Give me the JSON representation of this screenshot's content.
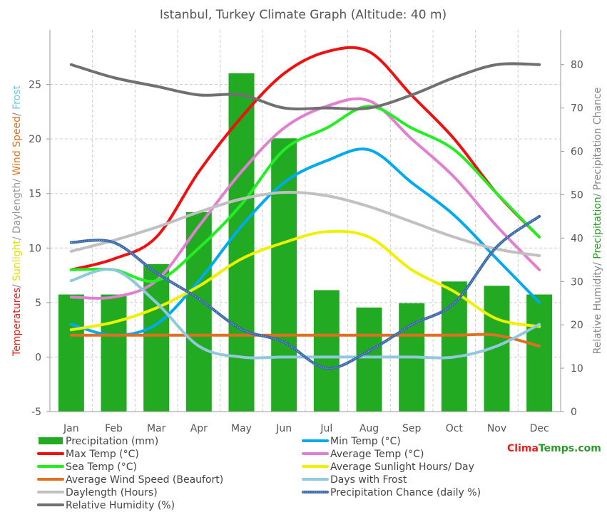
{
  "chart_data": {
    "type": "bar",
    "title": "Istanbul, Turkey Climate Graph (Altitude: 40 m)",
    "categories": [
      "Jan",
      "Feb",
      "Mar",
      "Apr",
      "May",
      "Jun",
      "Jul",
      "Aug",
      "Sep",
      "Oct",
      "Nov",
      "Dec"
    ],
    "left_axis": {
      "range": [
        -5,
        30
      ],
      "ticks": [
        -5,
        0,
        5,
        10,
        15,
        20,
        25
      ],
      "label_parts": [
        {
          "text": "Temperatures",
          "color": "#e8201e"
        },
        {
          "text": "/ ",
          "color": "#888888"
        },
        {
          "text": "Sunlight",
          "color": "#e0e000"
        },
        {
          "text": "/ Daylength/ ",
          "color": "#999999"
        },
        {
          "text": "Wind Speed",
          "color": "#e07020"
        },
        {
          "text": "/ ",
          "color": "#888888"
        },
        {
          "text": "Frost",
          "color": "#6ec8e0"
        }
      ]
    },
    "right_axis": {
      "range": [
        0,
        88
      ],
      "ticks": [
        0,
        10,
        20,
        30,
        40,
        50,
        60,
        70,
        80
      ],
      "label_parts": [
        {
          "text": "Relative Humidity",
          "color": "#888888"
        },
        {
          "text": "/ ",
          "color": "#888888"
        },
        {
          "text": "Precipitation",
          "color": "#2a9a2a"
        },
        {
          "text": "/ ",
          "color": "#888888"
        },
        {
          "text": "Precipitation Chance",
          "color": "#888888"
        }
      ]
    },
    "bars": {
      "name": "Precipitation (mm)",
      "color": "#22aa22",
      "values": [
        27,
        27,
        34,
        46,
        78,
        63,
        28,
        24,
        25,
        30,
        29,
        27
      ]
    },
    "series": [
      {
        "name": "Min Temp (°C)",
        "color": "#00aaee",
        "axis": "left",
        "style": "solid",
        "values": [
          3,
          2,
          3,
          7,
          12,
          16,
          18,
          19,
          16,
          13,
          9,
          5
        ]
      },
      {
        "name": "Max Temp (°C)",
        "color": "#ee1111",
        "axis": "left",
        "style": "solid",
        "values": [
          8,
          9,
          11,
          17,
          22,
          26,
          28,
          28,
          24,
          20,
          15,
          11
        ]
      },
      {
        "name": "Average Temp (°C)",
        "color": "#e080d0",
        "axis": "left",
        "style": "solid",
        "values": [
          5.5,
          5.5,
          7,
          12,
          17,
          21,
          23,
          23.5,
          20,
          16.5,
          12,
          8
        ]
      },
      {
        "name": "Sea Temp (°C)",
        "color": "#22ee22",
        "axis": "left",
        "style": "solid",
        "values": [
          8,
          8,
          7,
          10,
          14,
          19,
          21,
          23,
          21,
          19,
          15,
          11
        ]
      },
      {
        "name": "Average Sunlight Hours/ Day",
        "color": "#f0f000",
        "axis": "left",
        "style": "solid",
        "values": [
          2.5,
          3.2,
          4.5,
          6.5,
          9,
          10.5,
          11.5,
          11,
          8,
          6,
          3.5,
          2.8
        ]
      },
      {
        "name": "Average Wind Speed (Beaufort)",
        "color": "#e07020",
        "axis": "left",
        "style": "solid",
        "values": [
          2,
          2,
          2,
          2,
          2,
          2,
          2,
          2,
          2,
          2,
          2,
          1
        ]
      },
      {
        "name": "Days with Frost",
        "color": "#90c8dc",
        "axis": "left",
        "style": "solid",
        "values": [
          7,
          8,
          5,
          1,
          0,
          0,
          0,
          0,
          0,
          0,
          1,
          3
        ]
      },
      {
        "name": "Daylength (Hours)",
        "color": "#c0c0c0",
        "axis": "left",
        "style": "solid",
        "values": [
          9.7,
          10.7,
          11.9,
          13.3,
          14.5,
          15.1,
          14.8,
          13.8,
          12.4,
          11.0,
          9.9,
          9.3
        ]
      },
      {
        "name": "Precipitation Chance (daily %)",
        "color": "#3a6aa8",
        "axis": "right",
        "style": "dotted",
        "values": [
          39,
          39,
          32,
          26,
          19,
          16,
          10,
          14,
          20,
          25,
          38,
          45
        ]
      },
      {
        "name": "Relative Humidity (%)",
        "color": "#707070",
        "axis": "right",
        "style": "solid",
        "values": [
          80,
          77,
          75,
          73,
          73,
          70,
          70,
          70,
          73,
          77,
          80,
          80
        ]
      }
    ]
  },
  "legend_order": [
    "Precipitation (mm)",
    "Min Temp (°C)",
    "Max Temp (°C)",
    "Average Temp (°C)",
    "Sea Temp (°C)",
    "Average Sunlight Hours/ Day",
    "Average Wind Speed (Beaufort)",
    "Days with Frost",
    "Daylength (Hours)",
    "Precipitation Chance (daily %)",
    "Relative Humidity (%)"
  ],
  "brand": {
    "part1": "Clima",
    "part2": "Temps.com"
  }
}
